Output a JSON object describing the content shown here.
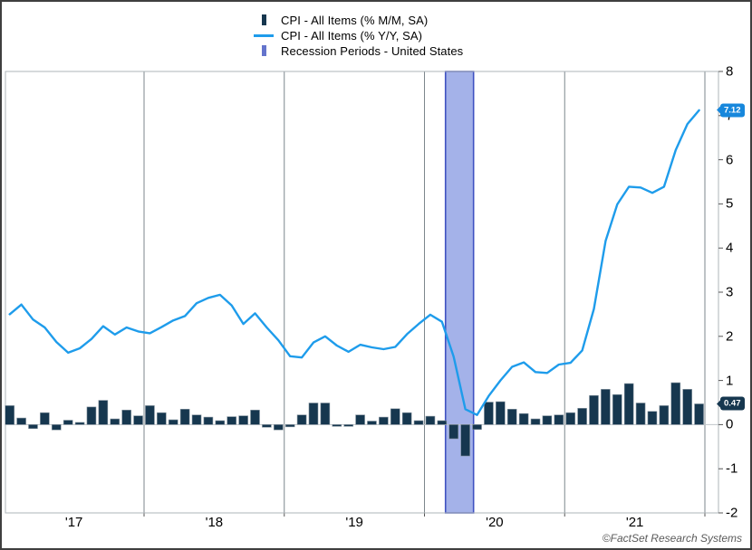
{
  "legend": {
    "items": [
      {
        "label": "CPI - All Items (% M/M, SA)",
        "swatch": "bar",
        "color": "#16374F"
      },
      {
        "label": "CPI - All Items (% Y/Y, SA)",
        "swatch": "line",
        "color": "#1E9CEB"
      },
      {
        "label": "Recession Periods - United States",
        "swatch": "band",
        "color": "#6474CC"
      }
    ]
  },
  "chart_data": {
    "type": "bar+line combo, monthly time series",
    "x_start": "2017-01",
    "x_end": "2021-12",
    "x_freq": "monthly",
    "series": [
      {
        "name": "CPI - All Items (% M/M, SA)",
        "type": "bar",
        "color": "#16374F",
        "values": [
          0.43,
          0.15,
          -0.09,
          0.27,
          -0.12,
          0.1,
          0.05,
          0.4,
          0.55,
          0.13,
          0.33,
          0.2,
          0.43,
          0.27,
          0.11,
          0.35,
          0.22,
          0.17,
          0.09,
          0.18,
          0.2,
          0.33,
          -0.06,
          -0.12,
          -0.05,
          0.22,
          0.49,
          0.49,
          -0.04,
          -0.04,
          0.22,
          0.08,
          0.17,
          0.36,
          0.27,
          0.09,
          0.19,
          0.09,
          -0.32,
          -0.71,
          -0.11,
          0.51,
          0.52,
          0.35,
          0.25,
          0.13,
          0.2,
          0.22,
          0.27,
          0.37,
          0.66,
          0.8,
          0.68,
          0.93,
          0.49,
          0.3,
          0.43,
          0.95,
          0.8,
          0.47
        ]
      },
      {
        "name": "CPI - All Items (% Y/Y, SA)",
        "type": "line",
        "color": "#1E9CEB",
        "values": [
          2.5,
          2.72,
          2.38,
          2.2,
          1.87,
          1.63,
          1.73,
          1.94,
          2.23,
          2.04,
          2.2,
          2.11,
          2.07,
          2.21,
          2.36,
          2.46,
          2.75,
          2.87,
          2.94,
          2.7,
          2.28,
          2.52,
          2.2,
          1.91,
          1.55,
          1.52,
          1.86,
          2.0,
          1.79,
          1.65,
          1.81,
          1.75,
          1.71,
          1.76,
          2.05,
          2.28,
          2.49,
          2.33,
          1.54,
          0.35,
          0.22,
          0.65,
          1.0,
          1.31,
          1.41,
          1.19,
          1.17,
          1.36,
          1.4,
          1.68,
          2.62,
          4.16,
          4.99,
          5.39,
          5.37,
          5.25,
          5.39,
          6.22,
          6.81,
          7.12
        ]
      }
    ],
    "recession_band": {
      "name": "Recession Periods - United States",
      "start": "2020-02",
      "end": "2020-04",
      "fill": "#A4B2E9",
      "border": "#3F51C1"
    },
    "y_axis": {
      "position": "right",
      "min": -2,
      "max": 8,
      "ticks": [
        8,
        7,
        6,
        5,
        4,
        3,
        2,
        1,
        0,
        -1,
        -2
      ]
    },
    "x_axis": {
      "tick_labels": [
        "'17",
        "'18",
        "'19",
        "'20",
        "'21"
      ]
    },
    "last_value_labels": {
      "line": {
        "text": "7.12",
        "value": 7.12,
        "bg": "#1787DC"
      },
      "bar": {
        "text": "0.47",
        "value": 0.47,
        "bg": "#16374F"
      }
    },
    "grid": "vertical lines at year boundaries",
    "colors": {
      "grid": "#7D878D",
      "plot_border": "#AEB4B8",
      "zero_line": "#C0C6CA",
      "axis_tick": "#555555"
    }
  },
  "footer": {
    "copyright": "©FactSet Research Systems"
  }
}
